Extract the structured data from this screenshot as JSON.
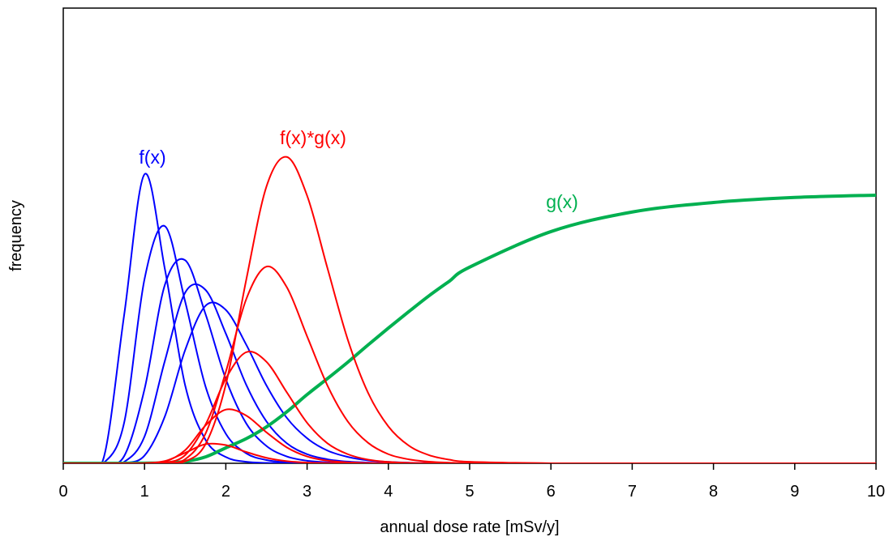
{
  "chart_data": {
    "type": "line",
    "x_label": "annual dose rate [mSv/y]",
    "y_label": "frequency",
    "x": [
      0,
      0.25,
      0.5,
      0.75,
      1,
      1.25,
      1.5,
      1.75,
      2,
      2.25,
      2.5,
      2.75,
      3,
      3.25,
      3.5,
      3.75,
      4,
      4.25,
      4.5,
      4.75,
      5,
      6,
      7,
      8,
      9,
      10
    ],
    "series": [
      {
        "color": "#0000ff",
        "linewidth": 2,
        "values": [
          0,
          0,
          0.0137,
          0.327,
          0.635,
          0.427,
          0.171,
          0.0517,
          0.0137,
          0.0033,
          0.0008,
          0.0002,
          0,
          0,
          0,
          0,
          0,
          0,
          0,
          0,
          0,
          0,
          0,
          0,
          0,
          0
        ]
      },
      {
        "color": "#0000ff",
        "linewidth": 2,
        "values": [
          0,
          0,
          0.0012,
          0.09,
          0.405,
          0.521,
          0.355,
          0.169,
          0.065,
          0.022,
          0.0071,
          0.0021,
          0.0006,
          0.0002,
          0,
          0,
          0,
          0,
          0,
          0,
          0,
          0,
          0,
          0,
          0,
          0
        ]
      },
      {
        "color": "#0000ff",
        "linewidth": 2,
        "values": [
          0,
          0,
          0,
          0.016,
          0.163,
          0.392,
          0.446,
          0.328,
          0.185,
          0.088,
          0.038,
          0.015,
          0.0056,
          0.0021,
          0.0007,
          0.0003,
          0.0001,
          0,
          0,
          0,
          0,
          0,
          0,
          0,
          0,
          0
        ]
      },
      {
        "color": "#0000ff",
        "linewidth": 2,
        "values": [
          0,
          0,
          0,
          0.0032,
          0.059,
          0.225,
          0.375,
          0.381,
          0.285,
          0.173,
          0.092,
          0.044,
          0.02,
          0.0088,
          0.0037,
          0.0015,
          0.0006,
          0.0003,
          0.0001,
          0,
          0,
          0,
          0,
          0,
          0,
          0
        ]
      },
      {
        "color": "#0000ff",
        "linewidth": 2,
        "values": [
          0,
          0,
          0,
          0.0005,
          0.017,
          0.103,
          0.249,
          0.346,
          0.337,
          0.261,
          0.171,
          0.1,
          0.055,
          0.028,
          0.014,
          0.0065,
          0.0031,
          0.0014,
          0.0006,
          0.0003,
          0.0001,
          0,
          0,
          0,
          0,
          0
        ]
      },
      {
        "color": "#00b050",
        "linewidth": 4,
        "values": [
          0,
          0,
          0,
          0.0001,
          0.0003,
          0.0008,
          0.004,
          0.014,
          0.034,
          0.054,
          0.08,
          0.113,
          0.151,
          0.186,
          0.222,
          0.26,
          0.297,
          0.333,
          0.368,
          0.4,
          0.431,
          0.509,
          0.552,
          0.573,
          0.584,
          0.589
        ]
      },
      {
        "color": "#ff0000",
        "linewidth": 2,
        "values": [
          0,
          0,
          0,
          0,
          0.0002,
          0.0049,
          0.023,
          0.042,
          0.04,
          0.025,
          0.012,
          0.0046,
          0.0015,
          0.0005,
          0.0001,
          0,
          0,
          0,
          0,
          0,
          0,
          0,
          0,
          0,
          0,
          0
        ]
      },
      {
        "color": "#ff0000",
        "linewidth": 2,
        "values": [
          0,
          0,
          0,
          0,
          0.0001,
          0.0036,
          0.029,
          0.083,
          0.118,
          0.105,
          0.068,
          0.035,
          0.015,
          0.0057,
          0.002,
          0.0006,
          0.0002,
          0,
          0,
          0,
          0,
          0,
          0,
          0,
          0,
          0
        ]
      },
      {
        "color": "#ff0000",
        "linewidth": 2,
        "values": [
          0,
          0,
          0,
          0,
          0,
          0.0012,
          0.018,
          0.085,
          0.186,
          0.244,
          0.223,
          0.156,
          0.089,
          0.044,
          0.02,
          0.008,
          0.0031,
          0.0011,
          0.0004,
          0.0001,
          0,
          0,
          0,
          0,
          0,
          0
        ]
      },
      {
        "color": "#ff0000",
        "linewidth": 2,
        "values": [
          0,
          0,
          0,
          0,
          0,
          0.0004,
          0.009,
          0.065,
          0.201,
          0.36,
          0.432,
          0.387,
          0.279,
          0.171,
          0.092,
          0.045,
          0.02,
          0.0087,
          0.0035,
          0.0014,
          0.0005,
          0,
          0,
          0,
          0,
          0
        ]
      },
      {
        "color": "#ff0000",
        "linewidth": 2,
        "values": [
          0,
          0,
          0,
          0,
          0,
          0.0001,
          0.0042,
          0.042,
          0.173,
          0.402,
          0.608,
          0.673,
          0.588,
          0.429,
          0.272,
          0.155,
          0.081,
          0.039,
          0.018,
          0.008,
          0.0034,
          0.0001,
          0,
          0,
          0,
          0
        ]
      }
    ],
    "annotations": [
      {
        "text": "f(x)",
        "color": "#0000ff"
      },
      {
        "text": "f(x)*g(x)",
        "color": "#ff0000"
      },
      {
        "text": "g(x)",
        "color": "#00b050"
      }
    ],
    "xlim": [
      0,
      10
    ],
    "xticks": [
      0,
      1,
      2,
      3,
      4,
      5,
      6,
      7,
      8,
      9,
      10
    ],
    "ylim": [
      0,
      1
    ]
  }
}
